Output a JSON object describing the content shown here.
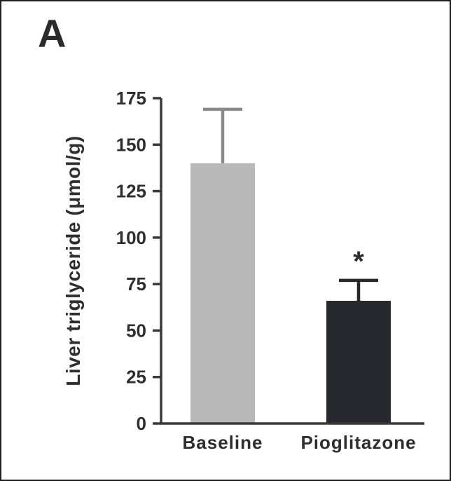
{
  "panel_label": "A",
  "colors": {
    "axis": "#3a3a3a",
    "text": "#2e2e2e",
    "background": "#ffffff",
    "border": "#1f1f1f",
    "baseline_bar": "#b9b9b9",
    "pioglitazone_bar": "#27272e",
    "baseline_error": "#8a8a8a",
    "pioglitazone_error": "#27272e"
  },
  "chart_data": {
    "type": "bar",
    "title": "",
    "xlabel": "",
    "ylabel": "Liver triglyceride (μmol/g)",
    "categories": [
      "Baseline",
      "Pioglitazone"
    ],
    "values": [
      140,
      66
    ],
    "errors_plus": [
      29,
      11
    ],
    "bar_colors": [
      "#b9b9b9",
      "#27272e"
    ],
    "error_colors": [
      "#8a8a8a",
      "#27272e"
    ],
    "annotations": [
      {
        "category_index": 1,
        "text": "*"
      }
    ],
    "ylim": [
      0,
      175
    ],
    "yticks": [
      0,
      25,
      50,
      75,
      100,
      125,
      150,
      175
    ],
    "grid": false,
    "legend_position": "none"
  }
}
